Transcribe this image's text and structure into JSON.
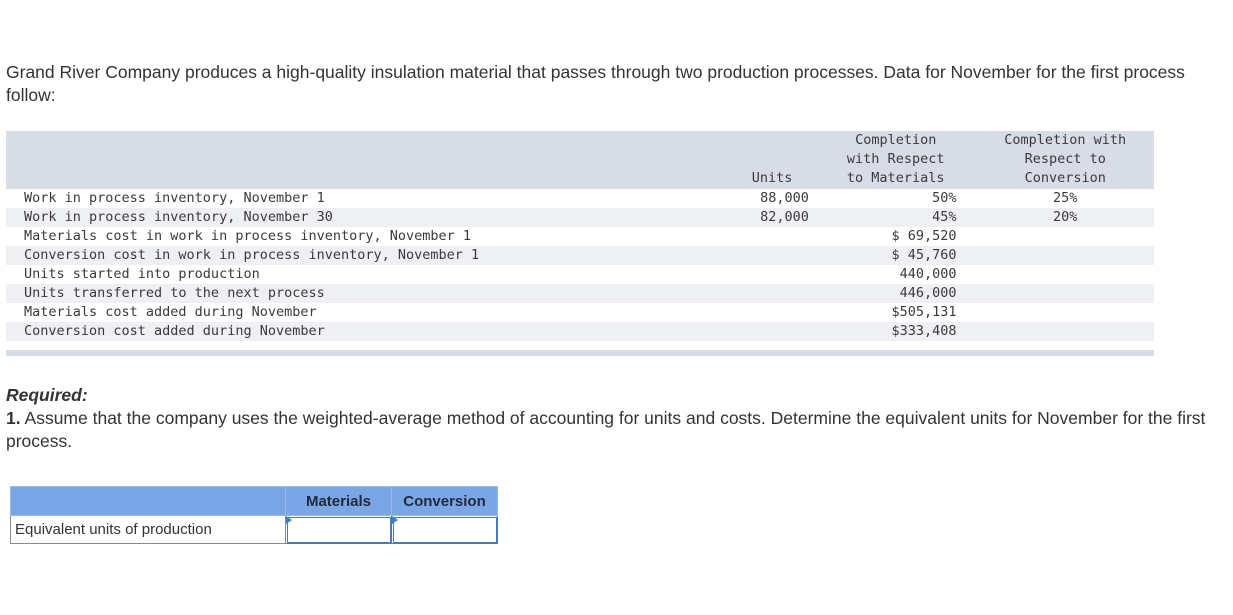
{
  "intro": "Grand River Company produces a high-quality insulation material that passes through two production processes. Data for November for the first process follow:",
  "table": {
    "headers": {
      "units": "Units",
      "materials": "Completion with Respect to Materials",
      "conversion": "Completion with Respect to Conversion"
    },
    "rows": [
      {
        "desc": "Work in process inventory, November 1",
        "units": "88,000",
        "materials": "50%",
        "conversion": "25%"
      },
      {
        "desc": "Work in process inventory, November 30",
        "units": "82,000",
        "materials": "45%",
        "conversion": "20%"
      },
      {
        "desc": "Materials cost in work in process inventory, November 1",
        "units": "",
        "materials": "$ 69,520",
        "conversion": ""
      },
      {
        "desc": "Conversion cost in work in process inventory, November 1",
        "units": "",
        "materials": "$ 45,760",
        "conversion": ""
      },
      {
        "desc": "Units started into production",
        "units": "",
        "materials": "440,000",
        "conversion": ""
      },
      {
        "desc": "Units transferred to the next process",
        "units": "",
        "materials": "446,000",
        "conversion": ""
      },
      {
        "desc": "Materials cost added during November",
        "units": "",
        "materials": "$505,131",
        "conversion": ""
      },
      {
        "desc": "Conversion cost added during November",
        "units": "",
        "materials": "$333,408",
        "conversion": ""
      }
    ]
  },
  "required": {
    "title": "Required:",
    "number": "1.",
    "question": "Assume that the company uses the weighted-average method of accounting for units and costs. Determine the equivalent units for November for the first process."
  },
  "answer_table": {
    "col_materials": "Materials",
    "col_conversion": "Conversion",
    "row_label": "Equivalent units of production",
    "materials_value": "",
    "conversion_value": ""
  }
}
